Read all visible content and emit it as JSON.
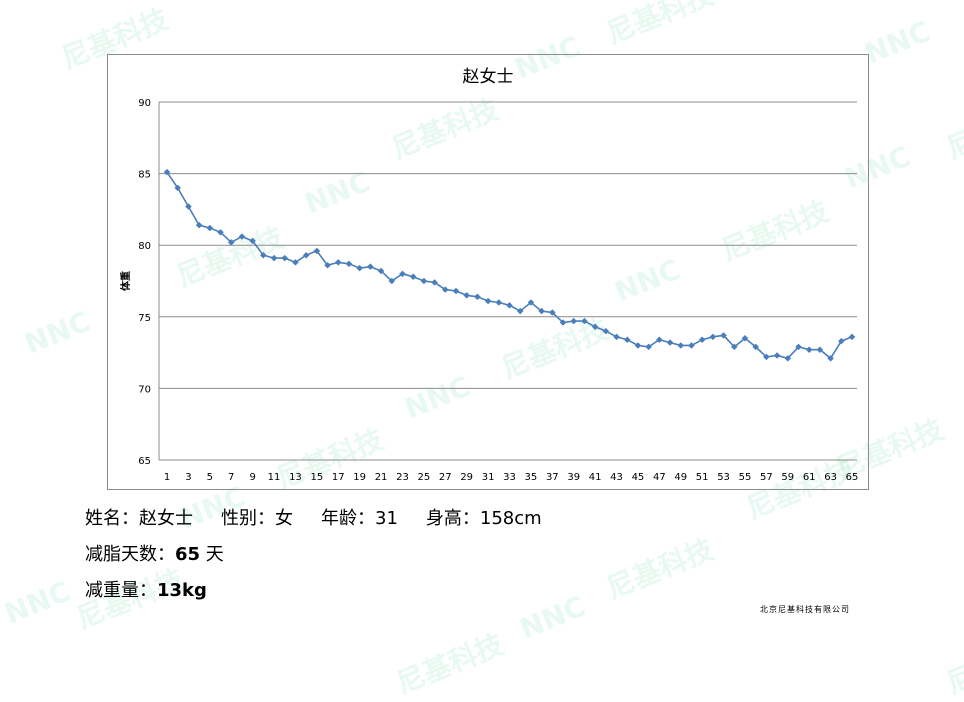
{
  "watermark": {
    "texts": [
      "尼基科技",
      "NNC"
    ],
    "color": "#21c774"
  },
  "chart_data": {
    "type": "line",
    "title": "赵女士",
    "ylabel": "体重",
    "xlabel": "",
    "ylim": [
      65,
      90
    ],
    "yticks": [
      65,
      70,
      75,
      80,
      85,
      90
    ],
    "x": [
      1,
      2,
      3,
      4,
      5,
      6,
      7,
      8,
      9,
      10,
      11,
      12,
      13,
      14,
      15,
      16,
      17,
      18,
      19,
      20,
      21,
      22,
      23,
      24,
      25,
      26,
      27,
      28,
      29,
      30,
      31,
      32,
      33,
      34,
      35,
      36,
      37,
      38,
      39,
      40,
      41,
      42,
      43,
      44,
      45,
      46,
      47,
      48,
      49,
      50,
      51,
      52,
      53,
      54,
      55,
      56,
      57,
      58,
      59,
      60,
      61,
      62,
      63,
      64,
      65
    ],
    "xtick_labels": [
      1,
      3,
      5,
      7,
      9,
      11,
      13,
      15,
      17,
      19,
      21,
      23,
      25,
      27,
      29,
      31,
      33,
      35,
      37,
      39,
      41,
      43,
      45,
      47,
      49,
      51,
      53,
      55,
      57,
      59,
      61,
      63,
      65
    ],
    "grid": "horizontal",
    "series": [
      {
        "color": "#4a7ebb",
        "values": [
          85.1,
          84.0,
          82.7,
          81.4,
          81.2,
          80.9,
          80.2,
          80.6,
          80.3,
          79.3,
          79.1,
          79.1,
          78.8,
          79.3,
          79.6,
          78.6,
          78.8,
          78.7,
          78.4,
          78.5,
          78.2,
          77.5,
          78.0,
          77.8,
          77.5,
          77.4,
          76.9,
          76.8,
          76.5,
          76.4,
          76.1,
          76.0,
          75.8,
          75.4,
          76.0,
          75.4,
          75.3,
          74.6,
          74.7,
          74.7,
          74.3,
          74.0,
          73.6,
          73.4,
          73.0,
          72.9,
          73.4,
          73.2,
          73.0,
          73.0,
          73.4,
          73.6,
          73.7,
          72.9,
          73.5,
          72.9,
          72.2,
          72.3,
          72.1,
          72.9,
          72.7,
          72.7,
          72.1,
          73.3,
          73.6
        ]
      }
    ]
  },
  "info": {
    "name_label": "姓名：",
    "name_value": "赵女士",
    "gender_label": "性别：",
    "gender_value": "女",
    "age_label": "年龄：",
    "age_value": "31",
    "height_label": "身高：",
    "height_value": "158cm",
    "days_label": "减脂天数：",
    "days_value": "65",
    "days_unit": " 天",
    "weight_loss_label": "减重量：",
    "weight_loss_value": "13kg"
  },
  "footer": {
    "company": "北京尼基科技有限公司"
  }
}
